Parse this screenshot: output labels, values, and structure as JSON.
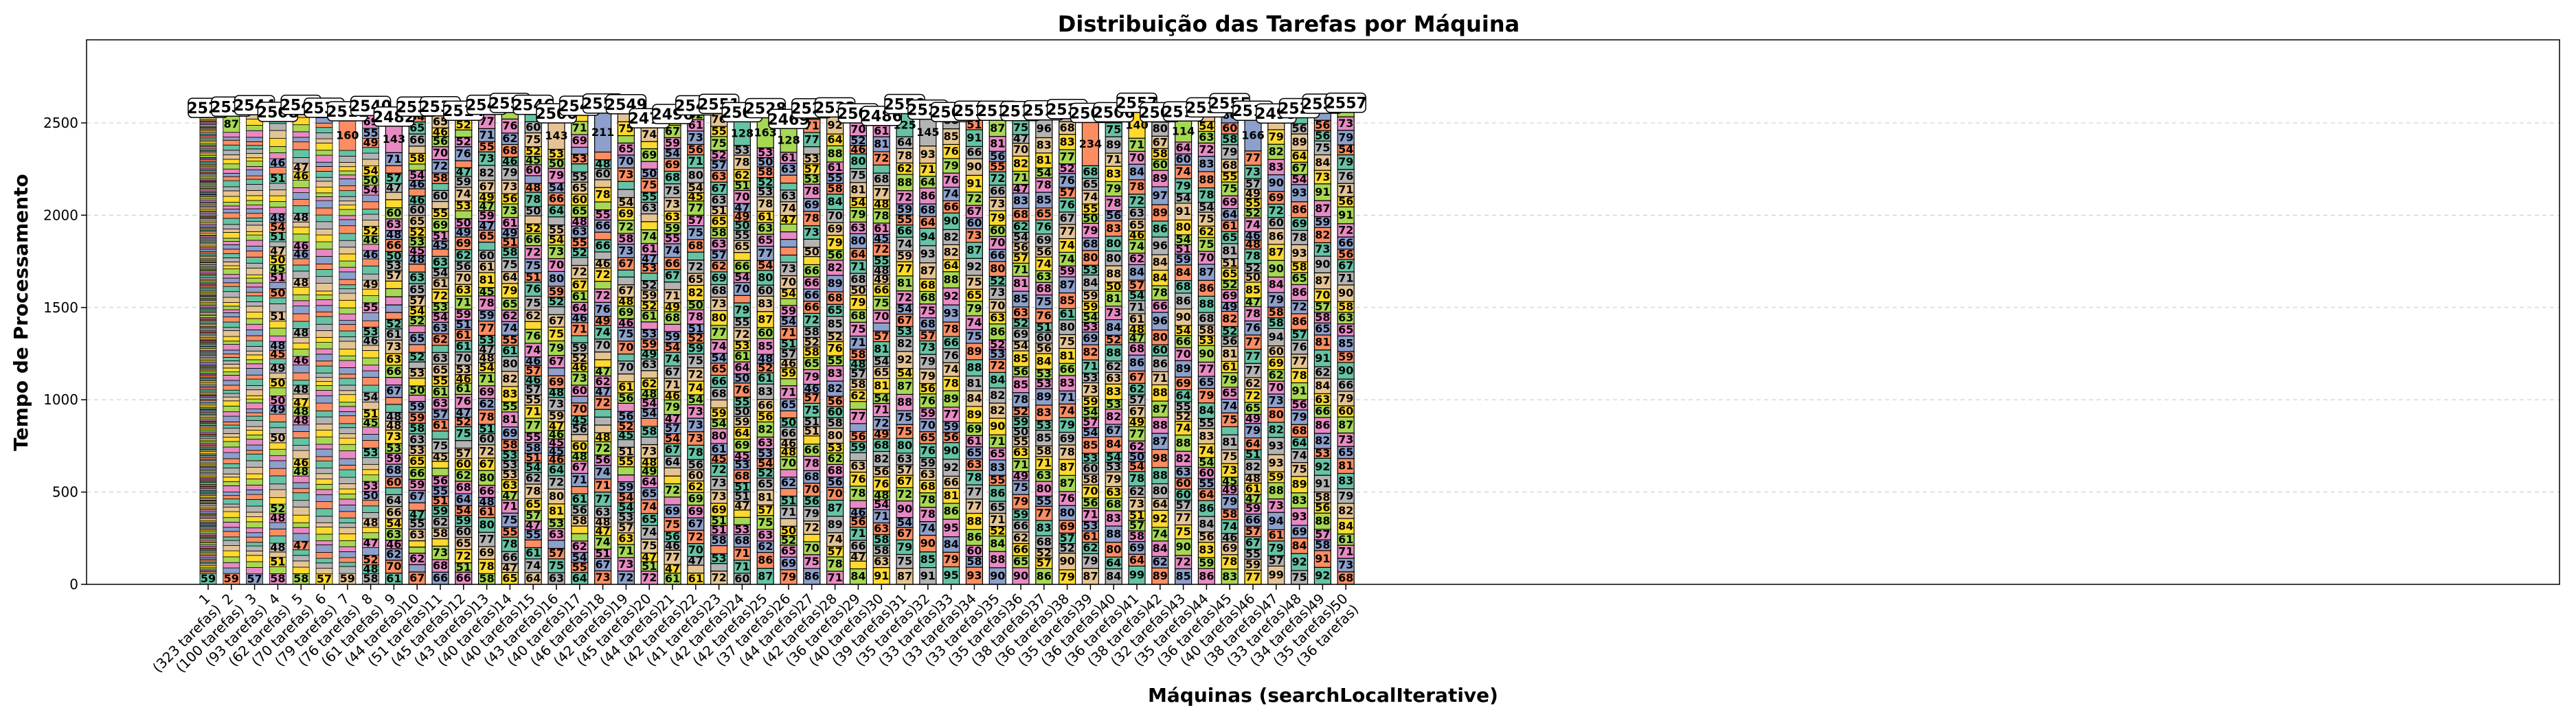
{
  "chart_data": {
    "type": "bar",
    "stacked": true,
    "title": "Distribuição das Tarefas por Máquina",
    "xlabel": "Máquinas (searchLocalIterative)",
    "ylabel": "Tempo de Processamento",
    "ylim": [
      0,
      2950
    ],
    "yticks": [
      0,
      500,
      1000,
      1500,
      2000,
      2500
    ],
    "grid": "y-dashed",
    "segment_palette": [
      "#66c2a5",
      "#fc8d62",
      "#8da0cb",
      "#e78ac3",
      "#a6d854",
      "#ffd92f",
      "#e5c494",
      "#b3b3b3"
    ],
    "categories": [
      "1",
      "2",
      "3",
      "4",
      "5",
      "6",
      "7",
      "8",
      "9",
      "10",
      "11",
      "12",
      "13",
      "14",
      "15",
      "16",
      "17",
      "18",
      "19",
      "20",
      "21",
      "22",
      "23",
      "24",
      "25",
      "26",
      "27",
      "28",
      "29",
      "30",
      "31",
      "32",
      "33",
      "34",
      "35",
      "36",
      "37",
      "38",
      "39",
      "40",
      "41",
      "42",
      "43",
      "44",
      "45",
      "46",
      "47",
      "48",
      "49",
      "50"
    ],
    "task_counts": [
      323,
      100,
      93,
      62,
      70,
      79,
      76,
      61,
      44,
      51,
      45,
      43,
      40,
      40,
      43,
      40,
      46,
      42,
      45,
      44,
      42,
      41,
      42,
      42,
      37,
      44,
      42,
      36,
      40,
      39,
      35,
      33,
      33,
      33,
      35,
      38,
      36,
      35,
      36,
      36,
      38,
      32,
      35,
      36,
      40,
      38,
      33,
      34,
      35,
      36
    ],
    "tick_labels": [
      "(323 tarefas)",
      "(100 tarefas)",
      "(93 tarefas)",
      "(62 tarefas)",
      "(70 tarefas)",
      "(79 tarefas)",
      "(76 tarefas)",
      "(61 tarefas)",
      "(44 tarefas)",
      "(51 tarefas)",
      "(45 tarefas)",
      "(43 tarefas)",
      "(40 tarefas)",
      "(40 tarefas)",
      "(43 tarefas)",
      "(40 tarefas)",
      "(46 tarefas)",
      "(42 tarefas)",
      "(45 tarefas)",
      "(44 tarefas)",
      "(42 tarefas)",
      "(41 tarefas)",
      "(42 tarefas)",
      "(42 tarefas)",
      "(37 tarefas)",
      "(44 tarefas)",
      "(42 tarefas)",
      "(36 tarefas)",
      "(40 tarefas)",
      "(39 tarefas)",
      "(35 tarefas)",
      "(33 tarefas)",
      "(33 tarefas)",
      "(33 tarefas)",
      "(35 tarefas)",
      "(38 tarefas)",
      "(36 tarefas)",
      "(35 tarefas)",
      "(36 tarefas)",
      "(36 tarefas)",
      "(38 tarefas)",
      "(32 tarefas)",
      "(35 tarefas)",
      "(36 tarefas)",
      "(40 tarefas)",
      "(38 tarefas)",
      "(33 tarefas)",
      "(34 tarefas)",
      "(35 tarefas)",
      "(36 tarefas)"
    ],
    "totals": [
      2529,
      2536,
      2544,
      2508,
      2546,
      2530,
      2511,
      2540,
      2482,
      2536,
      2538,
      2514,
      2546,
      2556,
      2546,
      2500,
      2541,
      2553,
      2549,
      2473,
      2496,
      2543,
      2551,
      2506,
      2528,
      2469,
      2527,
      2532,
      2500,
      2486,
      2550,
      2520,
      2507,
      2514,
      2514,
      2512,
      2516,
      2523,
      2502,
      2506,
      2557,
      2506,
      2510,
      2532,
      2555,
      2514,
      2499,
      2528,
      2552,
      2557
    ],
    "bottom_task_values": [
      59,
      59,
      57,
      58,
      58,
      57,
      59,
      58,
      61,
      67,
      66,
      66,
      58,
      65,
      64,
      63,
      64,
      73,
      72,
      72,
      61,
      61,
      72,
      60,
      87,
      79,
      86,
      71,
      84,
      91,
      87,
      91,
      95,
      93,
      90,
      90,
      86,
      79,
      87,
      84,
      99,
      89,
      85,
      86,
      83,
      77,
      99,
      75,
      92,
      68
    ]
  }
}
